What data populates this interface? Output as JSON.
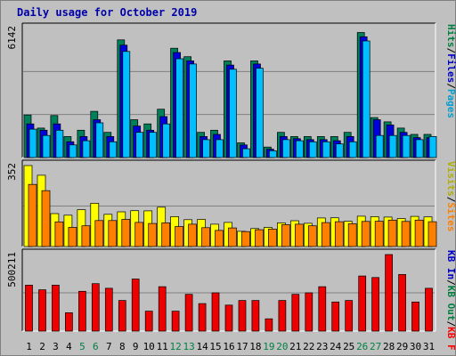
{
  "chart_data": {
    "type": "bar",
    "title": "Daily usage for October 2019",
    "categories": [
      "1",
      "2",
      "3",
      "4",
      "5",
      "6",
      "7",
      "8",
      "9",
      "10",
      "11",
      "12",
      "13",
      "14",
      "15",
      "16",
      "17",
      "18",
      "19",
      "20",
      "21",
      "22",
      "23",
      "24",
      "25",
      "26",
      "27",
      "28",
      "29",
      "30",
      "31"
    ],
    "weekend_days": [
      "5",
      "6",
      "12",
      "13",
      "19",
      "20",
      "26",
      "27"
    ],
    "panels": [
      {
        "name": "top",
        "max_label": "6142",
        "ylim": [
          0,
          6142
        ],
        "side_labels": [
          {
            "text": "Hits",
            "color": "#008040"
          },
          {
            "text": "/",
            "color": "#000000"
          },
          {
            "text": "Files",
            "color": "#0000cc"
          },
          {
            "text": "/",
            "color": "#000000"
          },
          {
            "text": "Pages",
            "color": "#00a0d0"
          }
        ],
        "series": [
          {
            "name": "Hits",
            "color": "#00805a",
            "values": [
              2024,
              1400,
              2000,
              1000,
              1300,
              2200,
              1200,
              5600,
              1800,
              1600,
              2300,
              5200,
              4800,
              1200,
              1300,
              4600,
              700,
              4600,
              500,
              1200,
              1000,
              1000,
              1000,
              1000,
              1200,
              5950,
              1900,
              1700,
              1400,
              1100,
              1100
            ]
          },
          {
            "name": "Files",
            "color": "#0000dd",
            "values": [
              1600,
              1300,
              1600,
              750,
              1000,
              1800,
              1000,
              5350,
              1500,
              1300,
              1950,
              5000,
              4600,
              1000,
              1100,
              4400,
              600,
              4450,
              400,
              1000,
              900,
              850,
              850,
              800,
              1000,
              5750,
              1800,
              1550,
              1200,
              950,
              950
            ]
          },
          {
            "name": "Pages",
            "color": "#00bfff",
            "values": [
              1350,
              1050,
              1300,
              600,
              800,
              1650,
              750,
              5050,
              1200,
              1200,
              1600,
              4700,
              4450,
              850,
              850,
              4200,
              420,
              4250,
              320,
              850,
              800,
              750,
              750,
              650,
              750,
              5550,
              1050,
              1050,
              1050,
              850,
              1000
            ]
          }
        ]
      },
      {
        "name": "middle",
        "max_label": "352",
        "ylim": [
          0,
          352
        ],
        "side_labels": [
          {
            "text": "Visits",
            "color": "#b0b000"
          },
          {
            "text": "/",
            "color": "#000000"
          },
          {
            "text": "Sites",
            "color": "#ff8000"
          }
        ],
        "series": [
          {
            "name": "Visits",
            "color": "#ffff00",
            "values": [
              352,
              310,
              143,
              136,
              160,
              188,
              140,
              151,
              156,
              155,
              171,
              130,
              117,
              118,
              97,
              105,
              66,
              78,
              83,
              103,
              112,
              101,
              124,
              125,
              110,
              132,
              130,
              128,
              122,
              131,
              129
            ]
          },
          {
            "name": "Sites",
            "color": "#ff8000",
            "values": [
              270,
              243,
              107,
              83,
              90,
              113,
              113,
              118,
              105,
              100,
              103,
              87,
              97,
              82,
              70,
              81,
              65,
              73,
              76,
              95,
              97,
              90,
              104,
              108,
              99,
              109,
              110,
              115,
              109,
              115,
              108
            ]
          }
        ]
      },
      {
        "name": "bottom",
        "max_label": "500211",
        "ylim": [
          0,
          500211
        ],
        "side_labels": [
          {
            "text": "KB In",
            "color": "#0000cc"
          },
          {
            "text": "/",
            "color": "#000000"
          },
          {
            "text": "KB Out",
            "color": "#008040"
          },
          {
            "text": "/",
            "color": "#000000"
          },
          {
            "text": "KB F",
            "color": "#ff0000"
          }
        ],
        "series": [
          {
            "name": "KB F",
            "color": "#ee0000",
            "values": [
              300000,
              270000,
              300000,
              120000,
              260000,
              310000,
              280000,
              200000,
              340000,
              130000,
              290000,
              130000,
              240000,
              180000,
              250000,
              170000,
              200000,
              200000,
              80000,
              200000,
              240000,
              250000,
              290000,
              190000,
              200000,
              360000,
              350000,
              500211,
              370000,
              190000,
              280000
            ]
          }
        ]
      }
    ]
  }
}
